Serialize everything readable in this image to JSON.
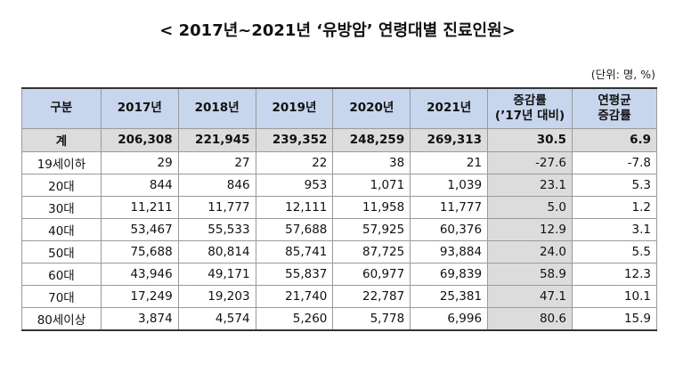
{
  "title": "< 2017년~2021년 ‘유방암’ 연령대별 진료인원>",
  "unit_note": "(단위: 명, %)",
  "table": {
    "headers": [
      "구분",
      "2017년",
      "2018년",
      "2019년",
      "2020년",
      "2021년",
      "증감률\n(’17년 대비)",
      "연평균\n증감률"
    ],
    "rows": [
      [
        "계",
        "206,308",
        "221,945",
        "239,352",
        "248,259",
        "269,313",
        "30.5",
        "6.9"
      ],
      [
        "19세이하",
        "29",
        "27",
        "22",
        "38",
        "21",
        "-27.6",
        "-7.8"
      ],
      [
        "20대",
        "844",
        "846",
        "953",
        "1,071",
        "1,039",
        "23.1",
        "5.3"
      ],
      [
        "30대",
        "11,211",
        "11,777",
        "12,111",
        "11,958",
        "11,777",
        "5.0",
        "1.2"
      ],
      [
        "40대",
        "53,467",
        "55,533",
        "57,688",
        "57,925",
        "60,376",
        "12.9",
        "3.1"
      ],
      [
        "50대",
        "75,688",
        "80,814",
        "85,741",
        "87,725",
        "93,884",
        "24.0",
        "5.5"
      ],
      [
        "60대",
        "43,946",
        "49,171",
        "55,837",
        "60,977",
        "69,839",
        "58.9",
        "12.3"
      ],
      [
        "70대",
        "17,249",
        "19,203",
        "21,740",
        "22,787",
        "25,381",
        "47.1",
        "10.1"
      ],
      [
        "80세이상",
        "3,874",
        "4,574",
        "5,260",
        "5,778",
        "6,996",
        "80.6",
        "15.9"
      ]
    ]
  }
}
